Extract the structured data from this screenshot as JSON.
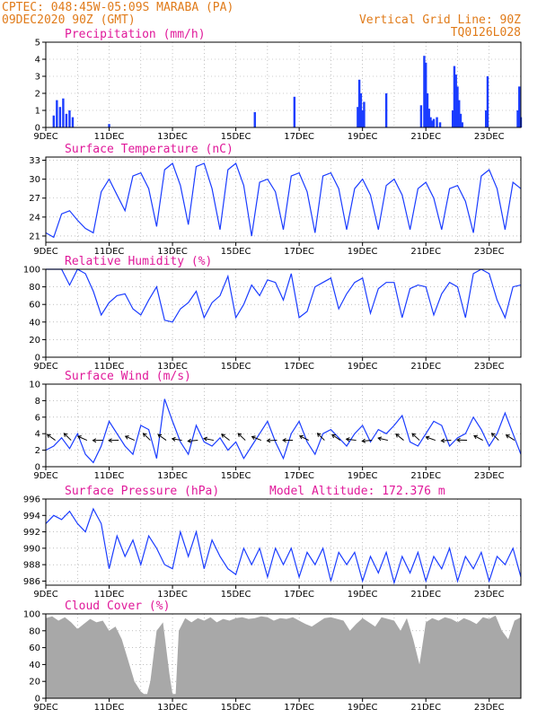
{
  "header": {
    "line1_left": "CPTEC:   048:45W-05:09S   MARABA (PA)",
    "line2_left": "09DEC2020 90Z (GMT)",
    "line1_right": "Vertical Grid Line: 90Z",
    "line2_right": "TQ0126L028",
    "altitude": "Model Altitude: 172.376 m"
  },
  "x_axis": {
    "labels": [
      "9DEC",
      "11DEC",
      "13DEC",
      "15DEC",
      "17DEC",
      "19DEC",
      "21DEC",
      "23DEC"
    ],
    "label_days": [
      0,
      2,
      4,
      6,
      8,
      10,
      12,
      14
    ],
    "range_days": [
      0,
      15
    ]
  },
  "chart_data": [
    {
      "type": "bar",
      "title": "Precipitation (mm/h)",
      "ylim": [
        0,
        5
      ],
      "yticks": [
        0,
        1,
        2,
        3,
        4,
        5
      ],
      "x": [
        0.25,
        0.35,
        0.45,
        0.55,
        0.65,
        0.75,
        0.85,
        2.0,
        6.6,
        7.85,
        9.85,
        9.9,
        9.95,
        10.0,
        10.05,
        10.75,
        11.85,
        11.95,
        12.0,
        12.05,
        12.1,
        12.15,
        12.2,
        12.25,
        12.35,
        12.45,
        12.85,
        12.9,
        12.95,
        13.0,
        13.05,
        13.1,
        13.15,
        13.9,
        13.95,
        14.9,
        14.95,
        15.0
      ],
      "values": [
        0.7,
        1.6,
        1.2,
        1.7,
        0.8,
        1.0,
        0.6,
        0.2,
        0.9,
        1.8,
        1.2,
        2.8,
        2.0,
        1.0,
        1.5,
        2.0,
        1.3,
        4.2,
        3.8,
        2.0,
        1.1,
        0.6,
        0.4,
        0.5,
        0.6,
        0.3,
        1.0,
        3.6,
        3.1,
        2.4,
        1.6,
        0.8,
        0.3,
        1.0,
        3.0,
        1.0,
        2.4,
        0.6
      ]
    },
    {
      "type": "line",
      "title": "Surface Temperature (nC)",
      "ylim": [
        20,
        33.5
      ],
      "yticks": [
        21,
        24,
        27,
        30,
        33
      ],
      "x": [
        0,
        0.25,
        0.5,
        0.75,
        1.0,
        1.25,
        1.5,
        1.75,
        2.0,
        2.25,
        2.5,
        2.75,
        3.0,
        3.25,
        3.5,
        3.75,
        4.0,
        4.25,
        4.5,
        4.75,
        5.0,
        5.25,
        5.5,
        5.75,
        6.0,
        6.25,
        6.5,
        6.75,
        7.0,
        7.25,
        7.5,
        7.75,
        8.0,
        8.25,
        8.5,
        8.75,
        9.0,
        9.25,
        9.5,
        9.75,
        10.0,
        10.25,
        10.5,
        10.75,
        11.0,
        11.25,
        11.5,
        11.75,
        12.0,
        12.25,
        12.5,
        12.75,
        13.0,
        13.25,
        13.5,
        13.75,
        14.0,
        14.25,
        14.5,
        14.75,
        15.0
      ],
      "values": [
        21.5,
        20.8,
        24.5,
        25.0,
        23.5,
        22.2,
        21.5,
        28.0,
        30.0,
        27.5,
        25.0,
        30.5,
        31.0,
        28.5,
        22.5,
        31.5,
        32.5,
        29.0,
        22.8,
        32.0,
        32.5,
        28.5,
        22.0,
        31.5,
        32.5,
        29.0,
        21.0,
        29.5,
        30.0,
        28.0,
        22.0,
        30.5,
        31.0,
        28.0,
        21.5,
        30.5,
        31.0,
        28.5,
        22.0,
        28.5,
        30.0,
        27.5,
        22.0,
        29.0,
        30.0,
        27.5,
        22.0,
        28.5,
        29.5,
        27.0,
        22.0,
        28.5,
        29.0,
        26.5,
        21.5,
        30.5,
        31.5,
        28.5,
        22.0,
        29.5,
        28.5
      ]
    },
    {
      "type": "line",
      "title": "Relative Humidity (%)",
      "ylim": [
        0,
        100
      ],
      "yticks": [
        0,
        20,
        40,
        60,
        80,
        100
      ],
      "x": [
        0,
        0.5,
        0.75,
        1.0,
        1.25,
        1.5,
        1.75,
        2.0,
        2.25,
        2.5,
        2.75,
        3.0,
        3.25,
        3.5,
        3.75,
        4.0,
        4.25,
        4.5,
        4.75,
        5.0,
        5.25,
        5.5,
        5.75,
        6.0,
        6.25,
        6.5,
        6.75,
        7.0,
        7.25,
        7.5,
        7.75,
        8.0,
        8.25,
        8.5,
        8.75,
        9.0,
        9.25,
        9.5,
        9.75,
        10.0,
        10.25,
        10.5,
        10.75,
        11.0,
        11.25,
        11.5,
        11.75,
        12.0,
        12.25,
        12.5,
        12.75,
        13.0,
        13.25,
        13.5,
        13.75,
        14.0,
        14.25,
        14.5,
        14.75,
        15.0
      ],
      "values": [
        100,
        100,
        82,
        100,
        95,
        75,
        48,
        62,
        70,
        72,
        55,
        48,
        65,
        80,
        42,
        40,
        55,
        62,
        75,
        45,
        62,
        70,
        92,
        45,
        60,
        82,
        70,
        88,
        85,
        65,
        95,
        45,
        52,
        80,
        85,
        90,
        55,
        72,
        85,
        90,
        50,
        78,
        85,
        85,
        45,
        78,
        82,
        80,
        48,
        72,
        85,
        80,
        45,
        95,
        100,
        95,
        65,
        45,
        80,
        82
      ]
    },
    {
      "type": "line",
      "title": "Surface Wind (m/s)",
      "ylim": [
        0,
        10
      ],
      "yticks": [
        0,
        2,
        4,
        6,
        8,
        10
      ],
      "x": [
        0,
        0.25,
        0.5,
        0.75,
        1.0,
        1.25,
        1.5,
        1.75,
        2.0,
        2.25,
        2.5,
        2.75,
        3.0,
        3.25,
        3.5,
        3.75,
        4.0,
        4.25,
        4.5,
        4.75,
        5.0,
        5.25,
        5.5,
        5.75,
        6.0,
        6.25,
        6.5,
        6.75,
        7.0,
        7.25,
        7.5,
        7.75,
        8.0,
        8.25,
        8.5,
        8.75,
        9.0,
        9.25,
        9.5,
        9.75,
        10.0,
        10.25,
        10.5,
        10.75,
        11.0,
        11.25,
        11.5,
        11.75,
        12.0,
        12.25,
        12.5,
        12.75,
        13.0,
        13.25,
        13.5,
        13.75,
        14.0,
        14.25,
        14.5,
        14.75,
        15.0
      ],
      "values": [
        2.0,
        2.5,
        3.5,
        2.2,
        4.0,
        1.5,
        0.5,
        2.5,
        5.5,
        4.0,
        2.5,
        1.5,
        5.0,
        4.5,
        1.0,
        8.2,
        5.5,
        3.0,
        1.5,
        5.0,
        3.0,
        2.5,
        3.5,
        2.0,
        3.0,
        1.0,
        2.5,
        4.0,
        5.5,
        3.0,
        1.0,
        4.0,
        5.5,
        3.0,
        1.5,
        4.0,
        4.5,
        3.5,
        2.5,
        4.0,
        5.0,
        3.0,
        4.5,
        4.0,
        5.0,
        6.2,
        3.0,
        2.5,
        4.0,
        5.5,
        5.0,
        2.5,
        3.5,
        4.0,
        6.0,
        4.5,
        2.5,
        4.0,
        6.5,
        4.0,
        1.5
      ]
    },
    {
      "type": "line",
      "title": "Surface Pressure (hPa)",
      "ylim": [
        985.5,
        996
      ],
      "yticks": [
        986,
        988,
        990,
        992,
        994,
        996
      ],
      "x": [
        0,
        0.25,
        0.5,
        0.75,
        1.0,
        1.25,
        1.5,
        1.75,
        2.0,
        2.25,
        2.5,
        2.75,
        3.0,
        3.25,
        3.5,
        3.75,
        4.0,
        4.25,
        4.5,
        4.75,
        5.0,
        5.25,
        5.5,
        5.75,
        6.0,
        6.25,
        6.5,
        6.75,
        7.0,
        7.25,
        7.5,
        7.75,
        8.0,
        8.25,
        8.5,
        8.75,
        9.0,
        9.25,
        9.5,
        9.75,
        10.0,
        10.25,
        10.5,
        10.75,
        11.0,
        11.25,
        11.5,
        11.75,
        12.0,
        12.25,
        12.5,
        12.75,
        13.0,
        13.25,
        13.5,
        13.75,
        14.0,
        14.25,
        14.5,
        14.75,
        15.0
      ],
      "values": [
        993,
        994,
        993.5,
        994.5,
        993,
        992,
        994.8,
        993,
        987.5,
        991.5,
        989,
        991,
        988,
        991.5,
        990,
        988,
        987.5,
        992,
        989,
        992,
        987.5,
        991,
        989,
        987.5,
        986.8,
        990,
        988,
        990,
        986.5,
        990,
        988,
        990,
        986.5,
        989.5,
        988,
        990,
        986,
        989.5,
        988,
        989.5,
        986,
        989,
        987,
        989.5,
        985.8,
        989,
        987,
        989.5,
        986,
        989,
        987.5,
        990,
        986,
        989,
        987.5,
        989.5,
        986,
        989,
        988,
        990,
        986.5
      ]
    },
    {
      "type": "area",
      "title": "Cloud Cover (%)",
      "ylim": [
        0,
        100
      ],
      "yticks": [
        0,
        20,
        40,
        60,
        80,
        100
      ],
      "x": [
        0,
        0.2,
        0.4,
        0.6,
        0.8,
        1.0,
        1.2,
        1.4,
        1.6,
        1.8,
        2.0,
        2.2,
        2.4,
        2.6,
        2.8,
        3.0,
        3.1,
        3.2,
        3.3,
        3.4,
        3.5,
        3.6,
        3.7,
        3.8,
        3.9,
        4.0,
        4.1,
        4.2,
        4.4,
        4.6,
        4.8,
        5.0,
        5.2,
        5.4,
        5.6,
        5.8,
        6.0,
        6.2,
        6.4,
        6.6,
        6.8,
        7.0,
        7.2,
        7.4,
        7.6,
        7.8,
        8.0,
        8.2,
        8.4,
        8.6,
        8.8,
        9.0,
        9.2,
        9.4,
        9.6,
        9.8,
        10.0,
        10.2,
        10.4,
        10.6,
        10.8,
        11.0,
        11.2,
        11.4,
        11.6,
        11.8,
        12.0,
        12.2,
        12.4,
        12.6,
        12.8,
        13.0,
        13.2,
        13.4,
        13.6,
        13.8,
        14.0,
        14.2,
        14.4,
        14.6,
        14.8,
        15.0
      ],
      "values": [
        95,
        97,
        92,
        96,
        90,
        82,
        88,
        94,
        90,
        92,
        80,
        85,
        70,
        45,
        20,
        8,
        5,
        5,
        20,
        50,
        80,
        85,
        90,
        60,
        30,
        5,
        5,
        80,
        95,
        90,
        95,
        92,
        96,
        90,
        94,
        92,
        95,
        96,
        94,
        95,
        97,
        96,
        92,
        95,
        94,
        96,
        92,
        88,
        85,
        90,
        95,
        96,
        94,
        92,
        80,
        88,
        95,
        90,
        85,
        96,
        94,
        92,
        80,
        95,
        70,
        40,
        90,
        95,
        92,
        96,
        94,
        90,
        95,
        92,
        88,
        96,
        94,
        98,
        80,
        70,
        92,
        96
      ]
    }
  ]
}
